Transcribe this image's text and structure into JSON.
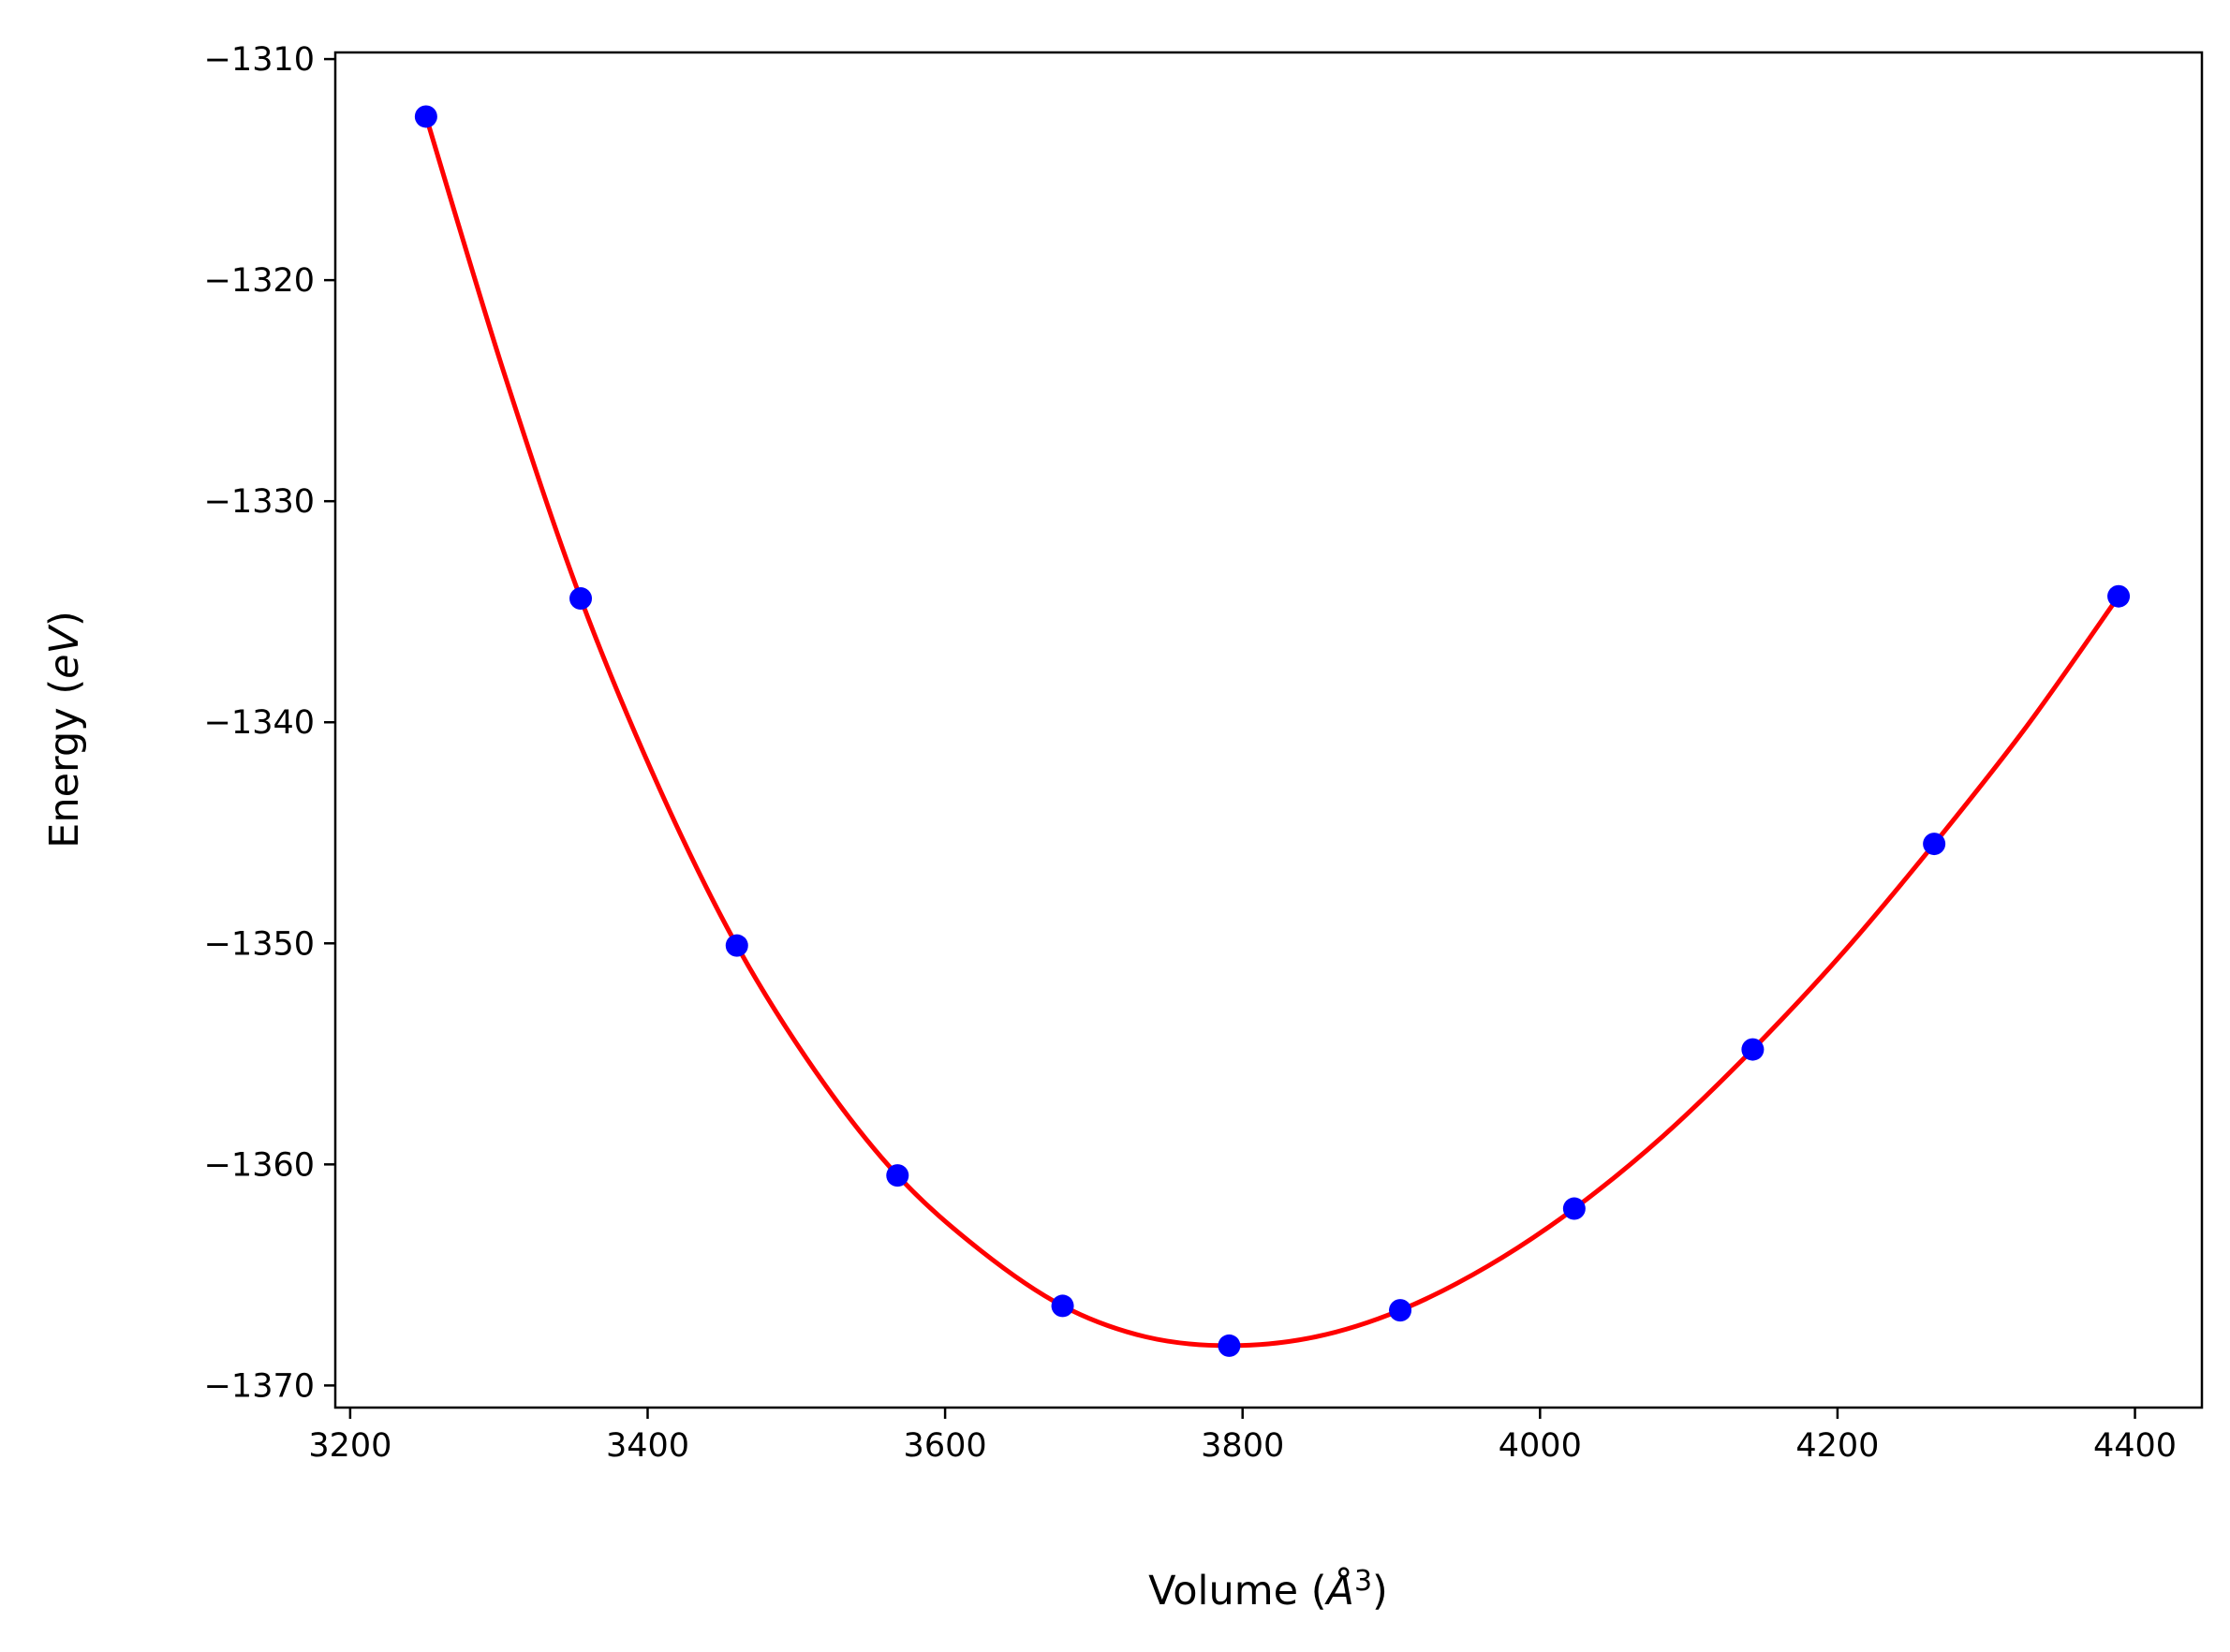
{
  "chart_data": {
    "type": "line",
    "title": "",
    "xlabel": {
      "prefix": "Volume (",
      "unit": "Å",
      "exponent": "3",
      "suffix": ")"
    },
    "ylabel": {
      "prefix": "Energy (",
      "unit": "eV",
      "suffix": ")"
    },
    "xlim": [
      3190,
      4445
    ],
    "ylim": [
      -1371,
      -1309.7
    ],
    "xticks": [
      3200,
      3400,
      3600,
      3800,
      4000,
      4200,
      4400
    ],
    "xtick_labels": [
      "3200",
      "3400",
      "3600",
      "3800",
      "4000",
      "4200",
      "4400"
    ],
    "yticks": [
      -1310,
      -1320,
      -1330,
      -1340,
      -1350,
      -1360,
      -1370
    ],
    "ytick_labels": [
      "−1310",
      "−1320",
      "−1330",
      "−1340",
      "−1350",
      "−1360",
      "−1370"
    ],
    "grid": false,
    "legend": "none",
    "series": [
      {
        "kind": "points",
        "color": "#0000ff",
        "x": [
          3251,
          3355,
          3460,
          3568,
          3679,
          3791,
          3906,
          4023,
          4143,
          4265,
          4389
        ],
        "y": [
          -1312.6,
          -1334.4,
          -1350.1,
          -1360.5,
          -1366.4,
          -1368.2,
          -1366.6,
          -1362.0,
          -1354.8,
          -1345.5,
          -1334.3
        ]
      },
      {
        "kind": "fit-curve",
        "color": "#ff0000",
        "x": [
          3251,
          3303,
          3355,
          3408,
          3460,
          3514,
          3568,
          3624,
          3679,
          3735,
          3791,
          3849,
          3906,
          3965,
          4023,
          4083,
          4143,
          4204,
          4265,
          4327,
          4389
        ],
        "y": [
          -1312.6,
          -1324.1,
          -1334.4,
          -1343.0,
          -1350.1,
          -1355.9,
          -1360.5,
          -1363.9,
          -1366.4,
          -1367.8,
          -1368.2,
          -1367.8,
          -1366.6,
          -1364.6,
          -1362.0,
          -1358.7,
          -1354.8,
          -1350.4,
          -1345.5,
          -1340.2,
          -1334.3
        ]
      }
    ]
  }
}
